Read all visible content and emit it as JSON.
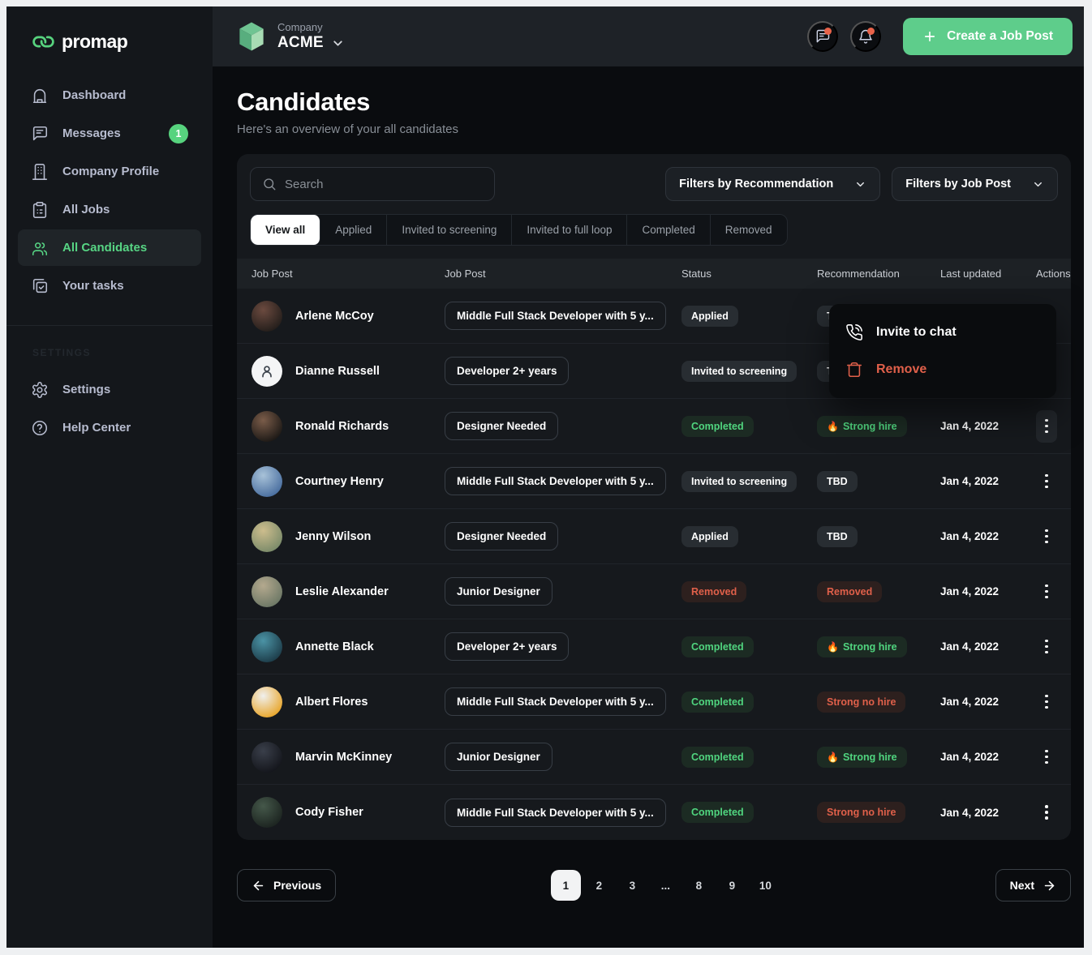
{
  "brand": {
    "name": "promap"
  },
  "sidebar": {
    "items": [
      {
        "icon": "home-icon",
        "label": "Dashboard",
        "active": false
      },
      {
        "icon": "message-icon",
        "label": "Messages",
        "badge": "1",
        "active": false
      },
      {
        "icon": "building-icon",
        "label": "Company Profile",
        "active": false
      },
      {
        "icon": "clipboard-icon",
        "label": "All Jobs",
        "active": false
      },
      {
        "icon": "people-icon",
        "label": "All Candidates",
        "active": true
      },
      {
        "icon": "tasks-icon",
        "label": "Your tasks",
        "active": false
      }
    ],
    "section_label": "SETTINGS",
    "footer_items": [
      {
        "icon": "gear-icon",
        "label": "Settings",
        "active": false
      },
      {
        "icon": "help-icon",
        "label": "Help Center",
        "active": false
      }
    ]
  },
  "topbar": {
    "company_label": "Company",
    "company_name": "ACME",
    "create_button": "Create a Job Post"
  },
  "page": {
    "title": "Candidates",
    "subtitle": "Here's an overview of your all candidates"
  },
  "toolbar": {
    "search_placeholder": "Search",
    "filter_recommendation": "Filters by Recommendation",
    "filter_job_post": "Filters by Job Post"
  },
  "tabs": [
    {
      "label": "View all",
      "active": true
    },
    {
      "label": "Applied",
      "active": false
    },
    {
      "label": "Invited to screening",
      "active": false
    },
    {
      "label": "Invited to full loop",
      "active": false
    },
    {
      "label": "Completed",
      "active": false
    },
    {
      "label": "Removed",
      "active": false
    }
  ],
  "table": {
    "columns": [
      "Job Post",
      "Job Post",
      "Status",
      "Recommendation",
      "Last updated",
      "Actions"
    ],
    "rows": [
      {
        "name": "Arlene McCoy",
        "job": "Middle Full Stack Developer with 5 y...",
        "status": "Applied",
        "status_type": "neutral",
        "rec": "TBD",
        "rec_type": "neutral",
        "rec_fire": false,
        "date": "Jan 4, 2022",
        "avatar": {
          "type": "photo",
          "c1": "#6b4a3f",
          "c2": "#241e1b"
        }
      },
      {
        "name": "Dianne Russell",
        "job": "Developer 2+ years",
        "status": "Invited to screening",
        "status_type": "neutral",
        "rec": "TBD",
        "rec_type": "neutral",
        "rec_fire": false,
        "date": "Jan 4, 2022",
        "avatar": {
          "type": "placeholder"
        }
      },
      {
        "name": "Ronald Richards",
        "job": "Designer Needed",
        "status": "Completed",
        "status_type": "green",
        "rec": "Strong hire",
        "rec_type": "green",
        "rec_fire": true,
        "date": "Jan 4, 2022",
        "avatar": {
          "type": "photo",
          "c1": "#7a5c49",
          "c2": "#1d1916"
        },
        "menu_open": true
      },
      {
        "name": "Courtney Henry",
        "job": "Middle Full Stack Developer with 5 y...",
        "status": "Invited to screening",
        "status_type": "neutral",
        "rec": "TBD",
        "rec_type": "neutral",
        "rec_fire": false,
        "date": "Jan 4, 2022",
        "avatar": {
          "type": "photo",
          "c1": "#a8c2d8",
          "c2": "#4a6fa0"
        }
      },
      {
        "name": "Jenny Wilson",
        "job": "Designer Needed",
        "status": "Applied",
        "status_type": "neutral",
        "rec": "TBD",
        "rec_type": "neutral",
        "rec_fire": false,
        "date": "Jan 4, 2022",
        "avatar": {
          "type": "photo",
          "c1": "#cdbd8d",
          "c2": "#7b8b6a"
        }
      },
      {
        "name": "Leslie Alexander",
        "job": "Junior Designer",
        "status": "Removed",
        "status_type": "red",
        "rec": "Removed",
        "rec_type": "red",
        "rec_fire": false,
        "date": "Jan 4, 2022",
        "avatar": {
          "type": "photo",
          "c1": "#b4a98e",
          "c2": "#6d7866"
        }
      },
      {
        "name": "Annette Black",
        "job": "Developer 2+ years",
        "status": "Completed",
        "status_type": "green",
        "rec": "Strong hire",
        "rec_type": "green",
        "rec_fire": true,
        "date": "Jan 4, 2022",
        "avatar": {
          "type": "photo",
          "c1": "#4b93a5",
          "c2": "#1d3d4a"
        }
      },
      {
        "name": "Albert Flores",
        "job": "Middle Full Stack Developer with 5 y...",
        "status": "Completed",
        "status_type": "green",
        "rec": "Strong no hire",
        "rec_type": "red",
        "rec_fire": false,
        "date": "Jan 4, 2022",
        "avatar": {
          "type": "photo",
          "c1": "#f0f0ee",
          "c2": "#e8a62c"
        }
      },
      {
        "name": "Marvin McKinney",
        "job": "Junior Designer",
        "status": "Completed",
        "status_type": "green",
        "rec": "Strong hire",
        "rec_type": "green",
        "rec_fire": true,
        "date": "Jan 4, 2022",
        "avatar": {
          "type": "photo",
          "c1": "#3a3f4a",
          "c2": "#14161c"
        }
      },
      {
        "name": "Cody Fisher",
        "job": "Middle Full Stack Developer with 5 y...",
        "status": "Completed",
        "status_type": "green",
        "rec": "Strong no hire",
        "rec_type": "red",
        "rec_fire": false,
        "date": "Jan 4, 2022",
        "avatar": {
          "type": "photo",
          "c1": "#45584a",
          "c2": "#1c2420"
        }
      }
    ]
  },
  "menu": {
    "items": [
      {
        "icon": "phone-icon",
        "label": "Invite to chat",
        "danger": false
      },
      {
        "icon": "trash-icon",
        "label": "Remove",
        "danger": true
      }
    ]
  },
  "pagination": {
    "previous": "Previous",
    "next": "Next",
    "pages": [
      "1",
      "2",
      "3",
      "...",
      "8",
      "9",
      "10"
    ],
    "active_page": "1"
  },
  "colors": {
    "accent_green": "#5ecd8b",
    "selected_green": "#57d584",
    "badge_green": "#57d37e",
    "pill_green_text": "#50d57f",
    "pill_red_text": "#e0604a",
    "notification_dot": "#e8634a",
    "sidebar_bg": "#14171b",
    "topbar_bg": "#1e2227",
    "panel_bg": "#16191d",
    "main_bg": "#0a0c0f"
  }
}
